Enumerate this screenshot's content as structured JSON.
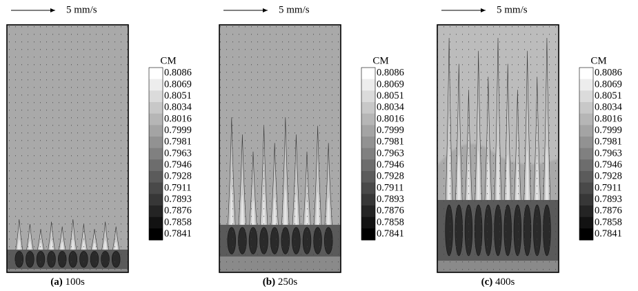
{
  "panels": [
    {
      "label": "(a)",
      "time": "100s",
      "scale": "5 mm/s"
    },
    {
      "label": "(b)",
      "time": "250s",
      "scale": "5 mm/s"
    },
    {
      "label": "(c)",
      "time": "400s",
      "scale": "5 mm/s"
    }
  ],
  "legend": {
    "title": "CM",
    "levels": [
      0.8086,
      0.8069,
      0.8051,
      0.8034,
      0.8016,
      0.7999,
      0.7981,
      0.7963,
      0.7946,
      0.7928,
      0.7911,
      0.7893,
      0.7876,
      0.7858,
      0.7841
    ]
  }
}
